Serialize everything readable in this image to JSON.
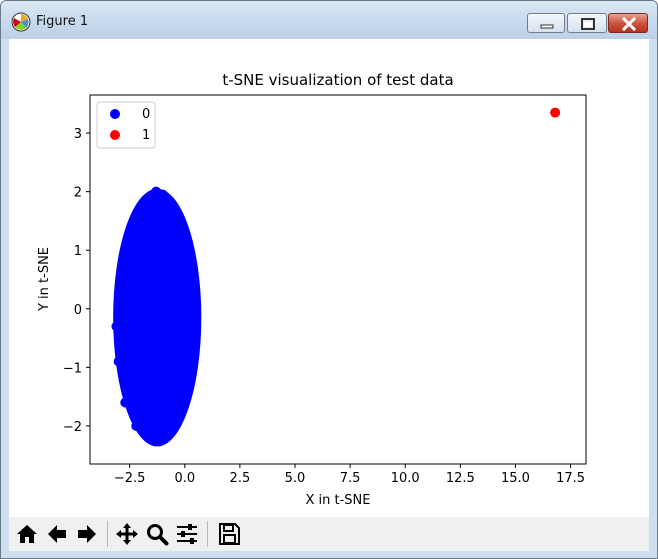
{
  "window": {
    "title": "Figure 1",
    "app_icon": "matplotlib-icon",
    "controls": [
      "minimize-icon",
      "maximize-icon",
      "close-icon"
    ]
  },
  "toolbar": {
    "buttons": [
      "home-icon",
      "back-arrow-icon",
      "forward-arrow-icon",
      "pan-icon",
      "zoom-icon",
      "configure-subplots-icon",
      "save-icon"
    ]
  },
  "chart_data": {
    "type": "scatter",
    "title": "t-SNE visualization of test data",
    "xlabel": "X in t-SNE",
    "ylabel": "Y in t-SNE",
    "xlim": [
      -4.3,
      18.2
    ],
    "ylim": [
      -2.65,
      3.65
    ],
    "xticks": [
      -2.5,
      0.0,
      2.5,
      5.0,
      7.5,
      10.0,
      12.5,
      15.0,
      17.5
    ],
    "xtick_labels": [
      "−2.5",
      "0.0",
      "2.5",
      "5.0",
      "7.5",
      "10.0",
      "12.5",
      "15.0",
      "17.5"
    ],
    "yticks": [
      -2,
      -1,
      0,
      1,
      2,
      3
    ],
    "ytick_labels": [
      "−2",
      "−1",
      "0",
      "1",
      "2",
      "3"
    ],
    "legend_position": "top-left",
    "grid": false,
    "series": [
      {
        "name": "0",
        "color": "#0000ff",
        "cluster": {
          "center": [
            -1.25,
            -0.15
          ],
          "x_radius": 2.0,
          "y_radius": 2.2
        },
        "points": [
          [
            -1.3,
            2.0
          ],
          [
            -1.0,
            1.95
          ],
          [
            -1.6,
            1.9
          ],
          [
            -2.2,
            1.5
          ],
          [
            -0.4,
            1.5
          ],
          [
            -2.6,
            1.0
          ],
          [
            -0.1,
            0.9
          ],
          [
            -2.9,
            0.3
          ],
          [
            0.2,
            0.2
          ],
          [
            -3.1,
            -0.3
          ],
          [
            0.3,
            -0.4
          ],
          [
            -3.0,
            -0.9
          ],
          [
            0.1,
            -1.2
          ],
          [
            -2.7,
            -1.6
          ],
          [
            -0.3,
            -1.7
          ],
          [
            -2.2,
            -2.0
          ],
          [
            -0.7,
            -2.1
          ],
          [
            -1.4,
            -2.25
          ],
          [
            -1.2,
            0.4
          ],
          [
            -1.5,
            -0.8
          ]
        ]
      },
      {
        "name": "1",
        "color": "#ff0000",
        "points": [
          [
            16.8,
            3.35
          ]
        ]
      }
    ]
  }
}
